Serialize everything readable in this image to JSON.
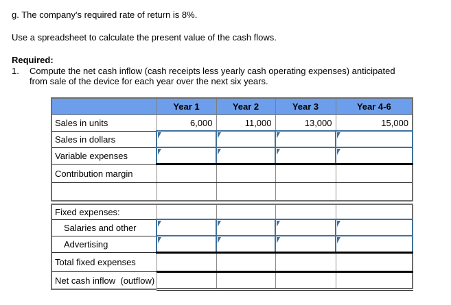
{
  "intro": {
    "line_g": "g. The company's required rate of return is 8%.",
    "line_use": "Use a spreadsheet to calculate the present value of the cash flows.",
    "required_label": "Required:",
    "item_number": "1.",
    "item_text": "Compute the net cash inflow (cash receipts less yearly cash operating expenses) anticipated from sale of the device for each year over the next six years."
  },
  "table": {
    "header": [
      "",
      "Year 1",
      "Year 2",
      "Year 3",
      "Year 4-6"
    ],
    "rows": {
      "sales_units": {
        "label": "Sales in units",
        "values": [
          "6,000",
          "11,000",
          "13,000",
          "15,000"
        ]
      },
      "sales_dollars": {
        "label": "Sales in dollars"
      },
      "variable_expenses": {
        "label": "Variable expenses"
      },
      "contribution_margin": {
        "label": "Contribution margin"
      },
      "blank": {
        "label": ""
      },
      "fixed_expenses": {
        "label": "Fixed expenses:"
      },
      "salaries_and_other": {
        "label": "Salaries and other"
      },
      "advertising": {
        "label": "Advertising"
      },
      "total_fixed_expenses": {
        "label": "Total fixed expenses"
      },
      "net_cash_inflow": {
        "label": "Net cash inflow  (outflow)"
      }
    }
  },
  "colors": {
    "header_bg": "#6D9EEB",
    "answer_cell_border": "#41719C",
    "grid_horizontal": "#262626",
    "grid_vertical": "#8C8C8C"
  }
}
